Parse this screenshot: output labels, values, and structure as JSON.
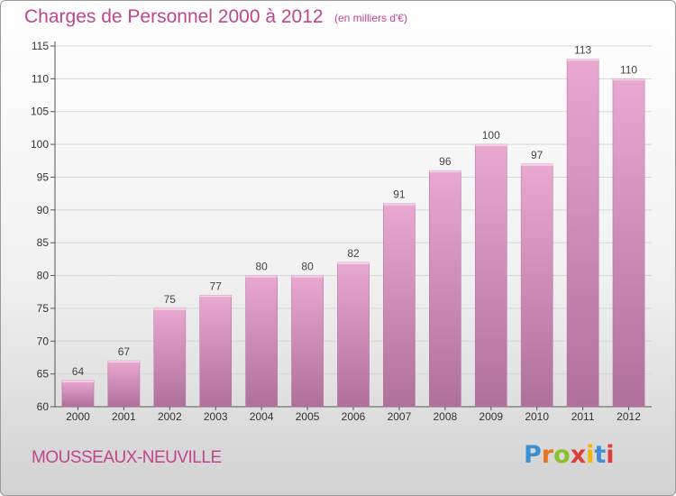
{
  "title": "Charges de Personnel 2000 à 2012",
  "unit_note": "(en milliers d'€)",
  "commune": "MOUSSEAUX-NEUVILLE",
  "brand": {
    "text": "Proxiti",
    "colors": [
      "#3d8fd1",
      "#e8741e",
      "#8bbf2e",
      "#e03c3c",
      "#f2b705",
      "#3d8fd1",
      "#e03c3c"
    ]
  },
  "colors": {
    "title": "#c0458a",
    "bar_top": "#e8a8d0",
    "bar_bottom": "#b0709c",
    "grid": "#d6d6d6"
  },
  "chart_data": {
    "type": "bar",
    "title": "Charges de Personnel 2000 à 2012",
    "subtitle": "(en milliers d'€)",
    "xlabel": "",
    "ylabel": "",
    "categories": [
      "2000",
      "2001",
      "2002",
      "2003",
      "2004",
      "2005",
      "2006",
      "2007",
      "2008",
      "2009",
      "2010",
      "2011",
      "2012"
    ],
    "values": [
      64,
      67,
      75,
      77,
      80,
      80,
      82,
      91,
      96,
      100,
      97,
      113,
      110
    ],
    "value_labels": [
      "64",
      "67",
      "75",
      "77",
      "80",
      "80",
      "82",
      "91",
      "96",
      "100",
      "97",
      "113",
      "110"
    ],
    "ylim": [
      60,
      115
    ],
    "yticks": [
      60,
      65,
      70,
      75,
      80,
      85,
      90,
      95,
      100,
      105,
      110,
      115
    ],
    "grid": true,
    "legend": "none"
  }
}
